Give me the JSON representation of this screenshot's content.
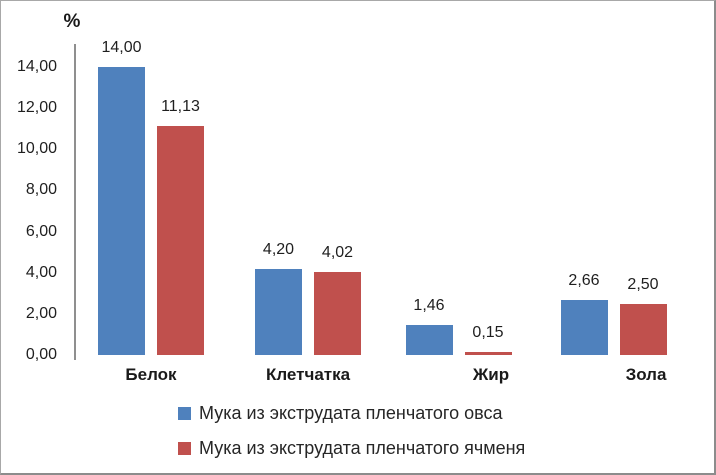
{
  "chart_data": {
    "type": "bar",
    "title": "",
    "ylabel": "%",
    "xlabel": "",
    "categories": [
      "Белок",
      "Клетчатка",
      "Жир",
      "Зола"
    ],
    "series": [
      {
        "name": "Мука из экструдата пленчатого овса",
        "color": "#4f81bd",
        "values": [
          14.0,
          4.2,
          1.46,
          2.66
        ],
        "labels": [
          "14,00",
          "4,20",
          "1,46",
          "2,66"
        ]
      },
      {
        "name": "Мука из экструдата пленчатого ячменя",
        "color": "#c0504d",
        "values": [
          11.13,
          4.02,
          0.15,
          2.5
        ],
        "labels": [
          "11,13",
          "4,02",
          "0,15",
          "2,50"
        ]
      }
    ],
    "y_axis": {
      "min": 0,
      "max": 14,
      "step": 2,
      "tick_labels": [
        "0,00",
        "2,00",
        "4,00",
        "6,00",
        "8,00",
        "10,00",
        "12,00",
        "14,00"
      ]
    },
    "grid": false,
    "legend_position": "bottom-left",
    "number_format": "comma-decimal"
  }
}
